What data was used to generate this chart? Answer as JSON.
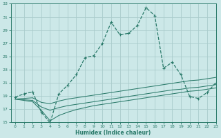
{
  "xlabel": "Humidex (Indice chaleur)",
  "bg_color": "#cce8e8",
  "grid_color": "#aacccc",
  "line_color": "#2a7a6a",
  "xlim": [
    -0.5,
    23
  ],
  "ylim": [
    15,
    33
  ],
  "xticks": [
    0,
    1,
    2,
    3,
    4,
    5,
    6,
    7,
    8,
    9,
    10,
    11,
    12,
    13,
    14,
    15,
    16,
    17,
    18,
    19,
    20,
    21,
    22,
    23
  ],
  "yticks": [
    15,
    17,
    19,
    21,
    23,
    25,
    27,
    29,
    31,
    33
  ],
  "line1_x": [
    0,
    1,
    2,
    3,
    4,
    5,
    6,
    7,
    8,
    9,
    10,
    11,
    12,
    13,
    14,
    15,
    16,
    17,
    18,
    19,
    20,
    21,
    22,
    23
  ],
  "line1_y": [
    18.8,
    19.3,
    19.6,
    16.5,
    14.9,
    19.3,
    20.6,
    22.2,
    24.8,
    25.1,
    27.0,
    30.2,
    28.3,
    28.5,
    29.7,
    32.4,
    31.2,
    23.2,
    24.1,
    22.2,
    18.9,
    18.6,
    19.5,
    21.0
  ],
  "line2_x": [
    0,
    1,
    2,
    3,
    4,
    5,
    6,
    7,
    8,
    9,
    10,
    11,
    12,
    13,
    14,
    15,
    16,
    17,
    18,
    19,
    20,
    21,
    22,
    23
  ],
  "line2_y": [
    18.5,
    18.6,
    18.7,
    18.0,
    17.8,
    18.2,
    18.5,
    18.7,
    18.9,
    19.1,
    19.3,
    19.5,
    19.7,
    19.9,
    20.1,
    20.3,
    20.5,
    20.7,
    20.9,
    21.1,
    21.3,
    21.4,
    21.6,
    21.8
  ],
  "line3_x": [
    0,
    1,
    2,
    3,
    4,
    5,
    6,
    7,
    8,
    9,
    10,
    11,
    12,
    13,
    14,
    15,
    16,
    17,
    18,
    19,
    20,
    21,
    22,
    23
  ],
  "line3_y": [
    18.5,
    18.4,
    18.3,
    17.3,
    16.8,
    17.2,
    17.5,
    17.7,
    17.9,
    18.1,
    18.3,
    18.5,
    18.7,
    18.9,
    19.1,
    19.3,
    19.5,
    19.7,
    19.9,
    20.0,
    20.2,
    20.3,
    20.5,
    20.7
  ],
  "line4_x": [
    0,
    1,
    2,
    3,
    4,
    5,
    6,
    7,
    8,
    9,
    10,
    11,
    12,
    13,
    14,
    15,
    16,
    17,
    18,
    19,
    20,
    21,
    22,
    23
  ],
  "line4_y": [
    18.5,
    18.3,
    18.1,
    16.8,
    15.2,
    16.0,
    16.5,
    16.9,
    17.2,
    17.5,
    17.7,
    17.9,
    18.1,
    18.3,
    18.5,
    18.7,
    18.9,
    19.1,
    19.3,
    19.5,
    19.7,
    19.8,
    20.0,
    20.2
  ]
}
